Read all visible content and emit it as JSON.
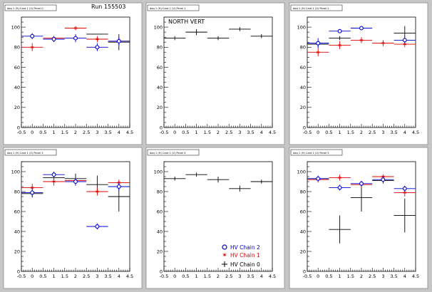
{
  "page": {
    "run_label": "Run 155503",
    "north_vert_label": "NORTH VERT"
  },
  "legend": [
    {
      "label": "HV Chain 2",
      "color": "#0000cc",
      "marker": "circle"
    },
    {
      "label": "HV Chain 1",
      "color": "#e00000",
      "marker": "star"
    },
    {
      "label": "HV Chain 0",
      "color": "#000000",
      "marker": "cross"
    }
  ],
  "colors": {
    "background": "#c6c6c6",
    "panel": "#ffffff",
    "chain2": "#0000cc",
    "chain1": "#e00000",
    "chain0": "#000000"
  },
  "chart_data": [
    {
      "type": "scatter",
      "title": "daq 1 (H) Card 1 (V) Panel 0",
      "xlim": [
        -0.5,
        4.5
      ],
      "ylim": [
        0,
        110
      ],
      "x_ticks": [
        "-0.5",
        "0",
        "0.5",
        "1",
        "1.5",
        "2",
        "2.5",
        "3",
        "3.5",
        "4",
        "4.5"
      ],
      "y_ticks": [
        "0",
        "20",
        "40",
        "60",
        "80",
        "100"
      ],
      "series": [
        {
          "chain": 2,
          "points": [
            {
              "x": 0,
              "y": 91,
              "err": 3
            },
            {
              "x": 1,
              "y": 88,
              "err": 3
            },
            {
              "x": 2,
              "y": 89,
              "err": 4
            },
            {
              "x": 3,
              "y": 80,
              "err": 4
            },
            {
              "x": 4,
              "y": 86,
              "err": 4
            }
          ]
        },
        {
          "chain": 1,
          "points": [
            {
              "x": 0,
              "y": 80,
              "err": 4
            },
            {
              "x": 1,
              "y": 89,
              "err": 2
            },
            {
              "x": 2,
              "y": 99,
              "err": 2
            },
            {
              "x": 3,
              "y": 88,
              "err": 3
            },
            {
              "x": 4,
              "y": 86,
              "err": 3
            }
          ]
        },
        {
          "chain": 0,
          "points": [
            {
              "x": 3,
              "y": 93,
              "err": 0
            },
            {
              "x": 4,
              "y": 85,
              "err": 8
            }
          ]
        }
      ]
    },
    {
      "type": "scatter",
      "title": "daq 1 (H) Card 1 (V) Panel 1",
      "xlim": [
        -0.5,
        4.5
      ],
      "ylim": [
        0,
        110
      ],
      "x_ticks": [
        "-0.5",
        "0",
        "0.5",
        "1",
        "1.5",
        "2",
        "2.5",
        "3",
        "3.5",
        "4",
        "4.5"
      ],
      "y_ticks": [
        "0",
        "20",
        "40",
        "60",
        "80",
        "100"
      ],
      "series": [
        {
          "chain": 0,
          "points": [
            {
              "x": 0,
              "y": 89,
              "err": 2
            },
            {
              "x": 1,
              "y": 95,
              "err": 3
            },
            {
              "x": 2,
              "y": 89,
              "err": 2
            },
            {
              "x": 3,
              "y": 98,
              "err": 2
            },
            {
              "x": 4,
              "y": 91,
              "err": 2
            }
          ]
        }
      ]
    },
    {
      "type": "scatter",
      "title": "daq 1 (H) Card 1 (V) Panel 2",
      "xlim": [
        -0.5,
        4.5
      ],
      "ylim": [
        0,
        110
      ],
      "x_ticks": [
        "-0.5",
        "0",
        "0.5",
        "1",
        "1.5",
        "2",
        "2.5",
        "3",
        "3.5",
        "4",
        "4.5"
      ],
      "y_ticks": [
        "0",
        "20",
        "40",
        "60",
        "80",
        "100"
      ],
      "series": [
        {
          "chain": 2,
          "points": [
            {
              "x": 0,
              "y": 84,
              "err": 5
            },
            {
              "x": 1,
              "y": 96,
              "err": 2
            },
            {
              "x": 2,
              "y": 99,
              "err": 1
            },
            {
              "x": 4,
              "y": 87,
              "err": 3
            }
          ]
        },
        {
          "chain": 1,
          "points": [
            {
              "x": 0,
              "y": 75,
              "err": 4
            },
            {
              "x": 1,
              "y": 82,
              "err": 4
            },
            {
              "x": 2,
              "y": 87,
              "err": 3
            },
            {
              "x": 3,
              "y": 84,
              "err": 3
            },
            {
              "x": 4,
              "y": 83,
              "err": 3
            }
          ]
        },
        {
          "chain": 0,
          "points": [
            {
              "x": 0,
              "y": 83,
              "err": 3
            },
            {
              "x": 1,
              "y": 89,
              "err": 2
            },
            {
              "x": 4,
              "y": 94,
              "err": 7
            }
          ]
        }
      ]
    },
    {
      "type": "scatter",
      "title": "daq 1 (H) Card 1 (V) Panel 3",
      "xlim": [
        -0.5,
        4.5
      ],
      "ylim": [
        0,
        110
      ],
      "x_ticks": [
        "-0.5",
        "0",
        "0.5",
        "1",
        "1.5",
        "2",
        "2.5",
        "3",
        "3.5",
        "4",
        "4.5"
      ],
      "y_ticks": [
        "0",
        "20",
        "40",
        "60",
        "80",
        "100"
      ],
      "series": [
        {
          "chain": 2,
          "points": [
            {
              "x": 0,
              "y": 79,
              "err": 5
            },
            {
              "x": 1,
              "y": 97,
              "err": 3
            },
            {
              "x": 2,
              "y": 90,
              "err": 4
            },
            {
              "x": 3,
              "y": 45,
              "err": 3
            },
            {
              "x": 4,
              "y": 85,
              "err": 4
            }
          ]
        },
        {
          "chain": 1,
          "points": [
            {
              "x": 0,
              "y": 84,
              "err": 4
            },
            {
              "x": 1,
              "y": 90,
              "err": 4
            },
            {
              "x": 2,
              "y": 91,
              "err": 3
            },
            {
              "x": 3,
              "y": 80,
              "err": 4
            },
            {
              "x": 4,
              "y": 89,
              "err": 3
            }
          ]
        },
        {
          "chain": 0,
          "points": [
            {
              "x": 0,
              "y": 78,
              "err": 3
            },
            {
              "x": 1,
              "y": 94,
              "err": 2
            },
            {
              "x": 2,
              "y": 93,
              "err": 5
            },
            {
              "x": 3,
              "y": 87,
              "err": 9
            },
            {
              "x": 4,
              "y": 75,
              "err": 15
            }
          ]
        }
      ]
    },
    {
      "type": "scatter",
      "title": "daq 1 (H) Card 1 (V) Panel 4",
      "xlim": [
        -0.5,
        4.5
      ],
      "ylim": [
        0,
        110
      ],
      "x_ticks": [
        "-0.5",
        "0",
        "0.5",
        "1",
        "1.5",
        "2",
        "2.5",
        "3",
        "3.5",
        "4",
        "4.5"
      ],
      "y_ticks": [
        "0",
        "20",
        "40",
        "60",
        "80",
        "100"
      ],
      "series": [
        {
          "chain": 0,
          "points": [
            {
              "x": 0,
              "y": 93,
              "err": 2
            },
            {
              "x": 1,
              "y": 97,
              "err": 2
            },
            {
              "x": 2,
              "y": 92,
              "err": 3
            },
            {
              "x": 3,
              "y": 83,
              "err": 3
            },
            {
              "x": 4,
              "y": 90,
              "err": 2
            }
          ]
        }
      ]
    },
    {
      "type": "scatter",
      "title": "daq 1 (H) Card 1 (V) Panel 5",
      "xlim": [
        -0.5,
        4.5
      ],
      "ylim": [
        0,
        110
      ],
      "x_ticks": [
        "-0.5",
        "0",
        "0.5",
        "1",
        "1.5",
        "2",
        "2.5",
        "3",
        "3.5",
        "4",
        "4.5"
      ],
      "y_ticks": [
        "0",
        "20",
        "40",
        "60",
        "80",
        "100"
      ],
      "series": [
        {
          "chain": 2,
          "points": [
            {
              "x": 0,
              "y": 93,
              "err": 3
            },
            {
              "x": 1,
              "y": 84,
              "err": 3
            },
            {
              "x": 2,
              "y": 88,
              "err": 3
            },
            {
              "x": 3,
              "y": 92,
              "err": 3
            },
            {
              "x": 4,
              "y": 83,
              "err": 3
            }
          ]
        },
        {
          "chain": 1,
          "points": [
            {
              "x": 0,
              "y": 92,
              "err": 3
            },
            {
              "x": 1,
              "y": 94,
              "err": 3
            },
            {
              "x": 2,
              "y": 87,
              "err": 3
            },
            {
              "x": 3,
              "y": 95,
              "err": 2
            },
            {
              "x": 4,
              "y": 79,
              "err": 4
            }
          ]
        },
        {
          "chain": 0,
          "points": [
            {
              "x": 0,
              "y": 93,
              "err": 2
            },
            {
              "x": 1,
              "y": 42,
              "err": 14
            },
            {
              "x": 2,
              "y": 74,
              "err": 14
            },
            {
              "x": 3,
              "y": 91,
              "err": 3
            },
            {
              "x": 4,
              "y": 56,
              "err": 17
            }
          ]
        }
      ]
    }
  ]
}
